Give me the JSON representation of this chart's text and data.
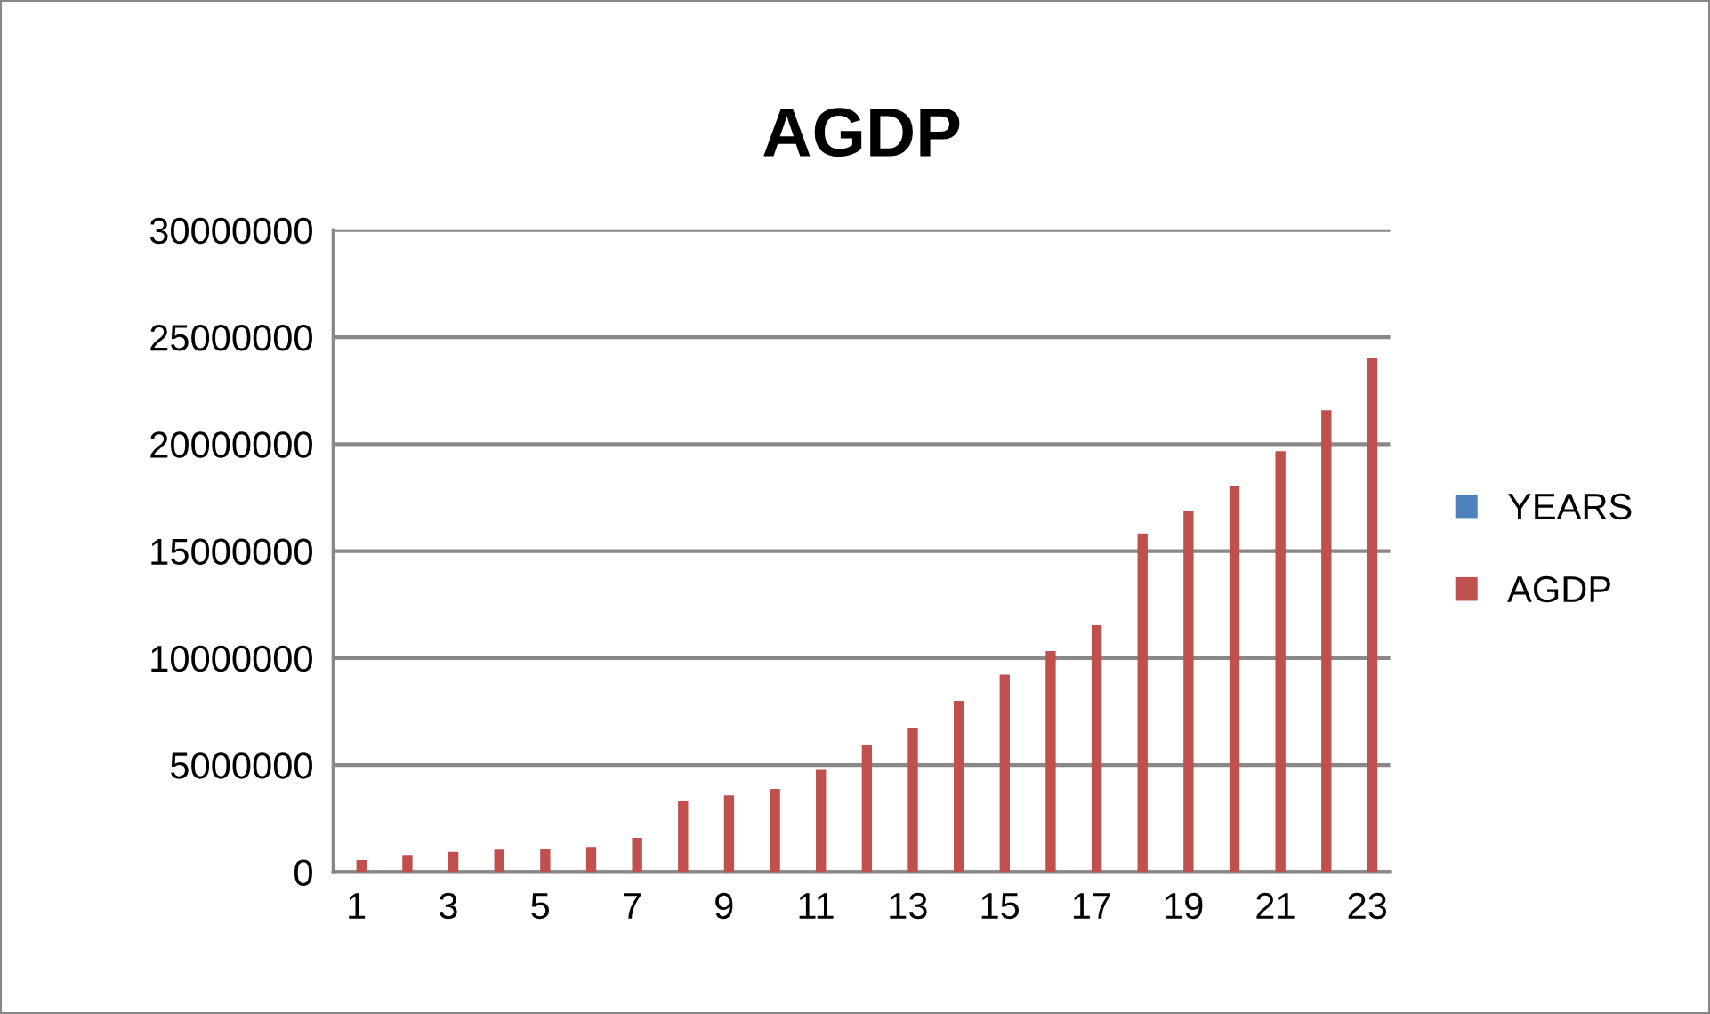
{
  "chart_data": {
    "type": "bar",
    "title": "AGDP",
    "categories": [
      "1",
      null,
      "3",
      null,
      "5",
      null,
      "7",
      null,
      "9",
      null,
      "11",
      null,
      "13",
      null,
      "15",
      null,
      "17",
      null,
      "19",
      null,
      "21",
      null,
      "23"
    ],
    "series": [
      {
        "name": "YEARS",
        "color": "#4f81bd",
        "values": [
          null,
          null,
          null,
          null,
          null,
          null,
          null,
          null,
          null,
          null,
          null,
          null,
          null,
          null,
          null,
          null,
          null,
          null,
          null,
          null,
          null,
          null,
          null
        ]
      },
      {
        "name": "AGDP",
        "color": "#c0504d",
        "values": [
          560000,
          800000,
          940000,
          1050000,
          1080000,
          1170000,
          1600000,
          3330000,
          3580000,
          3880000,
          4780000,
          5920000,
          6750000,
          8000000,
          9220000,
          10330000,
          11530000,
          15830000,
          16860000,
          18060000,
          19670000,
          21580000,
          24000000
        ]
      }
    ],
    "ylim": [
      0,
      30000000
    ],
    "yticks": [
      0,
      5000000,
      10000000,
      15000000,
      20000000,
      25000000,
      30000000
    ],
    "grid": "y",
    "legend": "right"
  }
}
